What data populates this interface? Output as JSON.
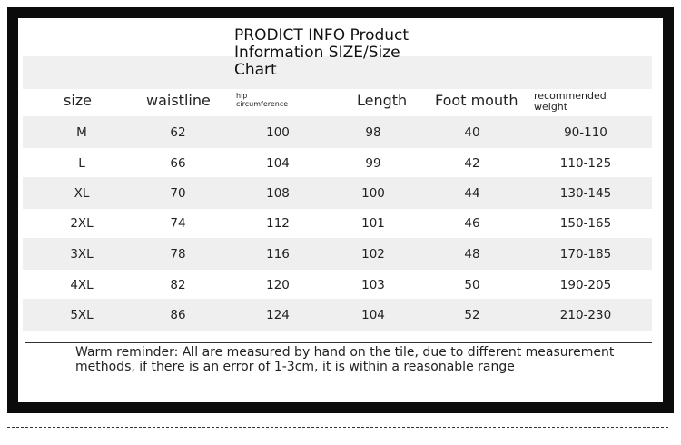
{
  "header": {
    "title": "PRODICT INFO Product Information SIZE/Size Chart"
  },
  "table": {
    "columns": [
      "size",
      "waistline",
      "hip circumference",
      "Length",
      "Foot mouth",
      "recommended weight"
    ],
    "rows": [
      [
        "M",
        "62",
        "100",
        "98",
        "40",
        "90-110"
      ],
      [
        "L",
        "66",
        "104",
        "99",
        "42",
        "110-125"
      ],
      [
        "XL",
        "70",
        "108",
        "100",
        "44",
        "130-145"
      ],
      [
        "2XL",
        "74",
        "112",
        "101",
        "46",
        "150-165"
      ],
      [
        "3XL",
        "78",
        "116",
        "102",
        "48",
        "170-185"
      ],
      [
        "4XL",
        "82",
        "120",
        "103",
        "50",
        "190-205"
      ],
      [
        "5XL",
        "86",
        "124",
        "104",
        "52",
        "210-230"
      ]
    ]
  },
  "footer": {
    "note": "Warm reminder: All are measured by hand on the tile, due to different measurement methods, if there is an error of 1-3cm, it is within a reasonable range"
  }
}
